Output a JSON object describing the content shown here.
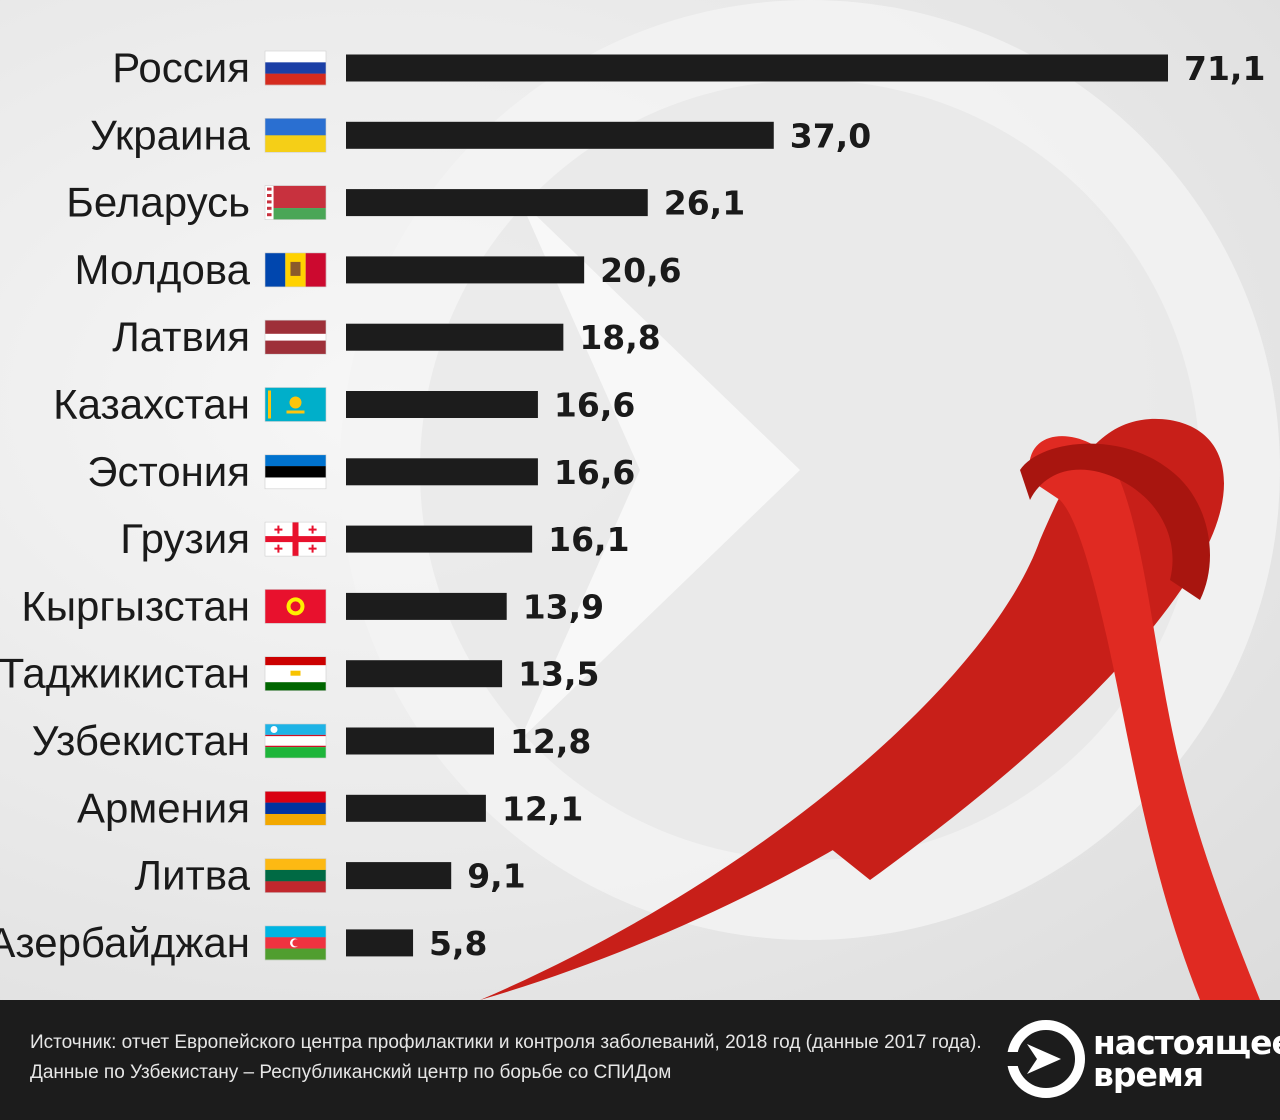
{
  "chart_data": {
    "type": "bar",
    "orientation": "horizontal",
    "categories": [
      "Россия",
      "Украина",
      "Беларусь",
      "Молдова",
      "Латвия",
      "Казахстан",
      "Эстония",
      "Грузия",
      "Кыргызстан",
      "Таджикистан",
      "Узбекистан",
      "Армения",
      "Литва",
      "Азербайджан"
    ],
    "values": [
      71.1,
      37.0,
      26.1,
      20.6,
      18.8,
      16.6,
      16.6,
      16.1,
      13.9,
      13.5,
      12.8,
      12.1,
      9.1,
      5.8
    ],
    "value_labels": [
      "71,1",
      "37,0",
      "26,1",
      "20,6",
      "18,8",
      "16,6",
      "16,6",
      "16,1",
      "13,9",
      "13,5",
      "12,8",
      "12,1",
      "9,1",
      "5,8"
    ],
    "flags": [
      "russia-flag",
      "ukraine-flag",
      "belarus-flag",
      "moldova-flag",
      "latvia-flag",
      "kazakhstan-flag",
      "estonia-flag",
      "georgia-flag",
      "kyrgyzstan-flag",
      "tajikistan-flag",
      "uzbekistan-flag",
      "armenia-flag",
      "lithuania-flag",
      "azerbaijan-flag"
    ],
    "xlim": [
      0,
      71.1
    ],
    "grid": false,
    "bar_color": "#1c1c1c"
  },
  "footer": {
    "source_line_1": "Источник: отчет Европейского центра профилактики и контроля заболеваний, 2018 год (данные 2017 года).",
    "source_line_2": "Данные по Узбекистану – Республиканский центр по борьбе со СПИДом",
    "logo_line_1": "настоящее",
    "logo_line_2": "время"
  },
  "colors": {
    "ribbon": "#d7261e",
    "footer_bg": "#1c1c1c",
    "background": "#efefef"
  },
  "icons": {
    "ribbon": "red-ribbon-icon",
    "logo": "play-arrow-logo-icon"
  }
}
